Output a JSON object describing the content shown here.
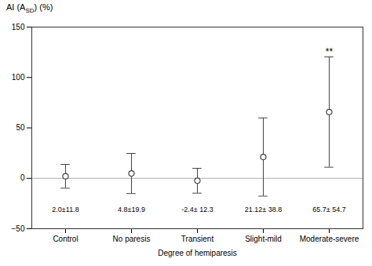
{
  "chart_data": {
    "type": "errorbar",
    "categories": [
      "Control",
      "No paresis",
      "Transient",
      "Slight-mild",
      "Moderate-severe"
    ],
    "values": [
      2.0,
      4.8,
      -2.4,
      21.12,
      65.7
    ],
    "sd": [
      11.8,
      19.9,
      12.3,
      38.8,
      54.7
    ],
    "value_labels": [
      "2.0±11.8",
      "4.8±19.9",
      "-2.4± 12.3",
      "21.12± 38.8",
      "65.7± 54.7"
    ],
    "data_labels": true,
    "annotations": [
      {
        "category": "Moderate-severe",
        "text": "**"
      }
    ],
    "xlabel": "Degree of hemiparesis",
    "ylabel": "AI (ASD) (%)",
    "ylabel_subscript": "SD",
    "ylim": [
      -50,
      150
    ],
    "yticks": [
      -50,
      0,
      50,
      100,
      150
    ],
    "reference_line": {
      "value": 0,
      "color": "#aaaaaa"
    },
    "color": "#444444",
    "marker": "open_circle",
    "grid": false
  }
}
